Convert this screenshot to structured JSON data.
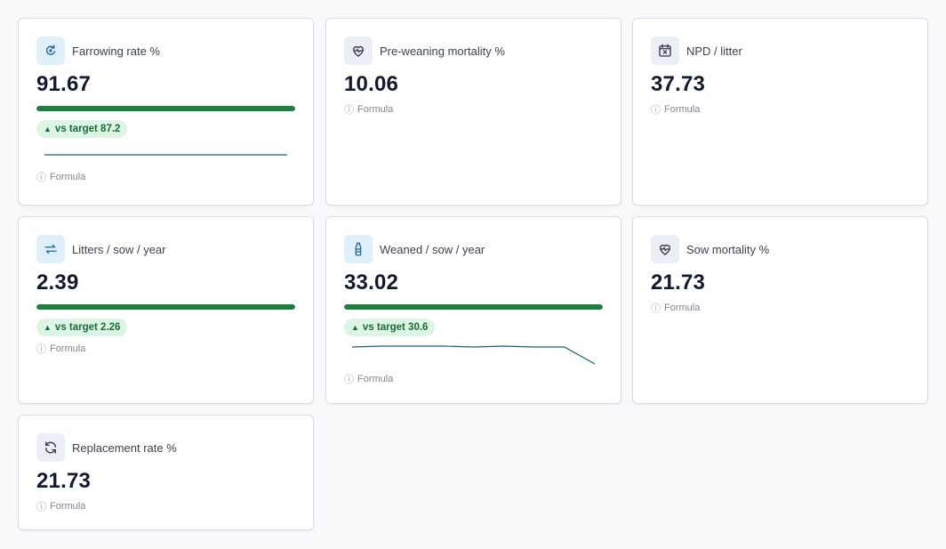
{
  "formula_label": "Formula",
  "info_glyph": "ⓘ",
  "trend_glyph": "▲",
  "cards": [
    {
      "name": "farrowing-rate",
      "label": "Farrowing rate %",
      "value": "91.67",
      "icon": "cycle-icon",
      "icon_tone": "blue",
      "progress": 1.0,
      "badge": "vs target 87.2",
      "sparkline": [
        0.5,
        0.5,
        0.5,
        0.5,
        0.5,
        0.5,
        0.5
      ]
    },
    {
      "name": "pre-weaning-mortality",
      "label": "Pre-weaning mortality %",
      "value": "10.06",
      "icon": "heart-pulse-icon",
      "icon_tone": "gray"
    },
    {
      "name": "npd-per-litter",
      "label": "NPD / litter",
      "value": "37.73",
      "icon": "calendar-x-icon",
      "icon_tone": "gray"
    },
    {
      "name": "litters-per-sow-year",
      "label": "Litters / sow / year",
      "value": "2.39",
      "icon": "repeat-icon",
      "icon_tone": "blue",
      "progress": 1.0,
      "badge": "vs target 2.26"
    },
    {
      "name": "weaned-per-sow-year",
      "label": "Weaned / sow / year",
      "value": "33.02",
      "icon": "bottle-icon",
      "icon_tone": "blue",
      "progress": 1.0,
      "badge": "vs target 30.6",
      "sparkline": [
        33.2,
        33.3,
        33.3,
        33.3,
        33.2,
        33.3,
        33.2,
        33.2,
        31.2
      ]
    },
    {
      "name": "sow-mortality",
      "label": "Sow mortality %",
      "value": "21.73",
      "icon": "heart-pulse-icon",
      "icon_tone": "gray"
    },
    {
      "name": "replacement-rate",
      "label": "Replacement rate %",
      "value": "21.73",
      "icon": "refresh-icon",
      "icon_tone": "gray"
    }
  ],
  "colors": {
    "accent_green": "#1d7f3f",
    "badge_bg": "#dcf5e4",
    "sparkline": "#1f5f7a"
  }
}
